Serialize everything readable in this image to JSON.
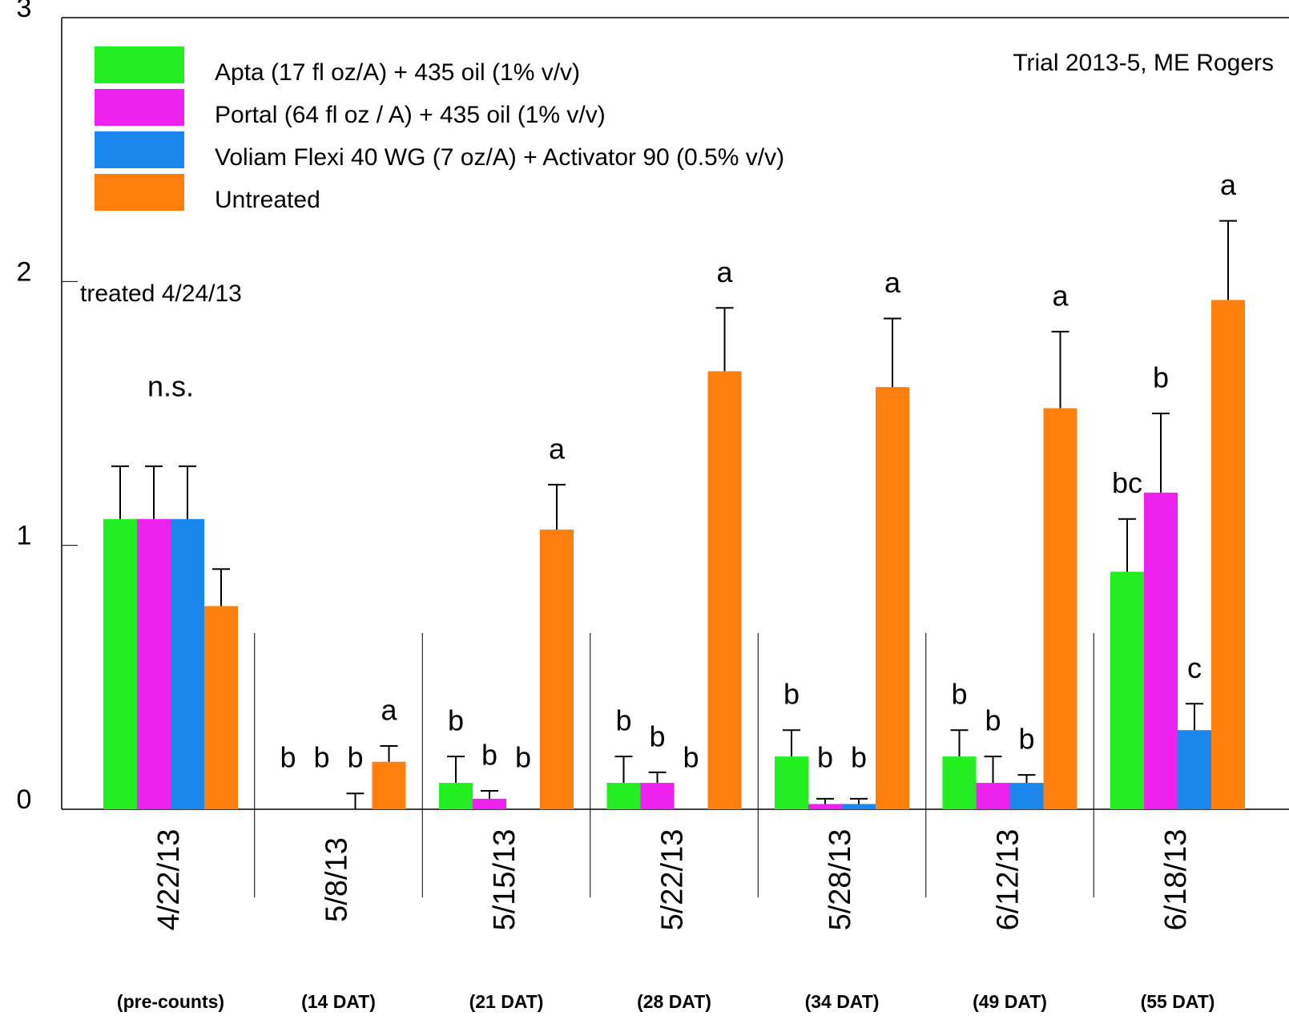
{
  "chart_data": {
    "type": "bar",
    "categories": [
      "4/22/13",
      "5/8/13",
      "5/15/13",
      "5/22/13",
      "5/28/13",
      "6/12/13",
      "6/18/13"
    ],
    "subcategories": [
      "(pre-counts)",
      "(14 DAT)",
      "(21 DAT)",
      "(28 DAT)",
      "(34 DAT)",
      "(49 DAT)",
      "(55 DAT)"
    ],
    "series": [
      {
        "name": "Apta (17 fl oz/A) + 435 oil (1% v/v)",
        "color": "#22ee22",
        "values": [
          1.1,
          0,
          0.1,
          0.1,
          0.2,
          0.2,
          0.9
        ],
        "errors": [
          0.2,
          0,
          0.1,
          0.1,
          0.1,
          0.1,
          0.2
        ],
        "letters": [
          null,
          "b",
          "b",
          "b",
          "b",
          "b",
          "bc"
        ]
      },
      {
        "name": "Portal (64 fl oz / A) + 435 oil (1% v/v)",
        "color": "#ee22ee",
        "values": [
          1.1,
          0,
          0.04,
          0.1,
          0.02,
          0.1,
          1.2
        ],
        "errors": [
          0.2,
          0,
          0.03,
          0.04,
          0.02,
          0.1,
          0.3
        ],
        "letters": [
          null,
          "b",
          "b",
          "b",
          "b",
          "b",
          "b"
        ]
      },
      {
        "name": "Voliam Flexi 40 WG (7 oz/A)  + Activator 90 (0.5% v/v)",
        "color": "#1a86ee",
        "values": [
          1.1,
          0,
          0,
          0,
          0.02,
          0.1,
          0.3
        ],
        "errors": [
          0.2,
          0.06,
          0,
          0,
          0.02,
          0.03,
          0.1
        ],
        "letters": [
          null,
          "b",
          "b",
          "b",
          "b",
          "b",
          "c"
        ]
      },
      {
        "name": "Untreated",
        "color": "#ff7f0e",
        "values": [
          0.77,
          0.18,
          1.06,
          1.66,
          1.6,
          1.52,
          1.93
        ],
        "errors": [
          0.14,
          0.06,
          0.17,
          0.24,
          0.26,
          0.29,
          0.3
        ],
        "letters": [
          null,
          "a",
          "a",
          "a",
          "a",
          "a",
          "a"
        ]
      }
    ],
    "group_annotation": "n.s.",
    "treatment_note": "treated 4/24/13",
    "trial_note": "Trial 2013-5, ME Rogers",
    "ylim": [
      0,
      3
    ],
    "yticks": [
      0,
      1,
      2,
      3
    ]
  }
}
